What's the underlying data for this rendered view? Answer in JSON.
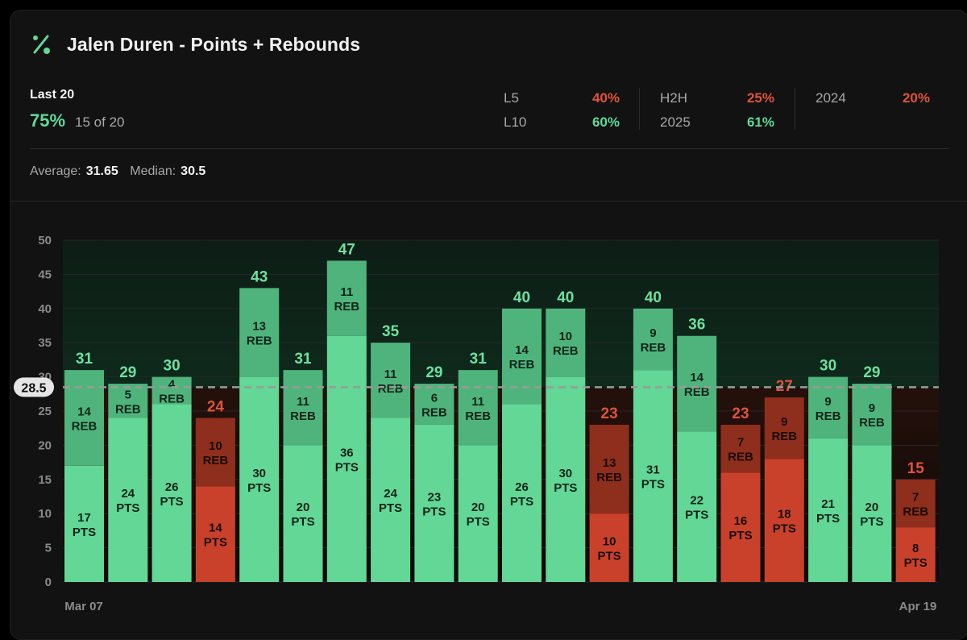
{
  "header": {
    "title": "Jalen Duren - Points + Rebounds",
    "icon": "percent-icon",
    "accent": "#5fd99a"
  },
  "summary": {
    "last_label": "Last 20",
    "hit_pct": "75%",
    "hit_count": "15 of 20",
    "average_label": "Average:",
    "average_value": "31.65",
    "median_label": "Median:",
    "median_value": "30.5"
  },
  "splits": [
    {
      "label": "L5",
      "value": "40%",
      "status": "red"
    },
    {
      "label": "L10",
      "value": "60%",
      "status": "green"
    },
    {
      "label": "H2H",
      "value": "25%",
      "status": "red"
    },
    {
      "label": "2025",
      "value": "61%",
      "status": "green"
    },
    {
      "label": "2024",
      "value": "20%",
      "status": "red"
    }
  ],
  "colors": {
    "over_pts": "#62d796",
    "over_reb": "#4fb47c",
    "under_pts": "#c9412a",
    "under_reb": "#8e2e1c",
    "over_total": "#6ee0a0",
    "under_total": "#e0533a"
  },
  "chart_data": {
    "type": "bar",
    "stacked": true,
    "line": 28.5,
    "line_label": "28.5",
    "ylim": [
      0,
      50
    ],
    "yticks": [
      0,
      5,
      10,
      15,
      20,
      25,
      30,
      35,
      40,
      45,
      50
    ],
    "x_start_label": "Mar 07",
    "x_end_label": "Apr 19",
    "pts_suffix": "PTS",
    "reb_suffix": "REB",
    "grid": true,
    "series": [
      {
        "name": "PTS",
        "values": [
          17,
          24,
          26,
          14,
          30,
          20,
          36,
          24,
          23,
          20,
          26,
          30,
          10,
          31,
          22,
          16,
          18,
          21,
          20,
          8
        ]
      },
      {
        "name": "REB",
        "values": [
          14,
          5,
          4,
          10,
          13,
          11,
          11,
          11,
          6,
          11,
          14,
          10,
          13,
          9,
          14,
          7,
          9,
          9,
          9,
          7
        ]
      }
    ],
    "totals": [
      31,
      29,
      30,
      24,
      43,
      31,
      47,
      35,
      29,
      31,
      40,
      40,
      23,
      40,
      36,
      23,
      27,
      30,
      29,
      15
    ]
  }
}
